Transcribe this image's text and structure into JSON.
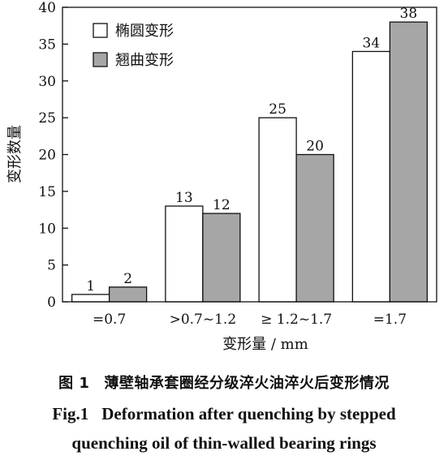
{
  "chart_data": {
    "type": "bar",
    "categories": [
      "=0.7",
      ">0.7~1.2",
      "≥ 1.2~1.7",
      "=1.7"
    ],
    "series": [
      {
        "name": "椭圆变形",
        "values": [
          1,
          13,
          25,
          34
        ],
        "color": "#ffffff"
      },
      {
        "name": "翘曲变形",
        "values": [
          2,
          12,
          20,
          38
        ],
        "color": "#a6a6a6"
      }
    ],
    "data_labels": [
      [
        "1",
        "13",
        "25",
        "34"
      ],
      [
        "2",
        "12",
        "20",
        "38"
      ]
    ],
    "xlabel": "变形量 / mm",
    "ylabel": "变形数量",
    "ylim": [
      0,
      40
    ],
    "yticks": [
      0,
      5,
      10,
      15,
      20,
      25,
      30,
      35,
      40
    ],
    "legend_position": "top-left",
    "grid": false
  },
  "caption": {
    "zh_number": "图 1",
    "zh_text": "薄壁轴承套圈经分级淬火油淬火后变形情况",
    "en_number": "Fig.1",
    "en_line1": "Deformation after quenching by stepped",
    "en_line2": "quenching oil of thin-walled bearing rings"
  }
}
